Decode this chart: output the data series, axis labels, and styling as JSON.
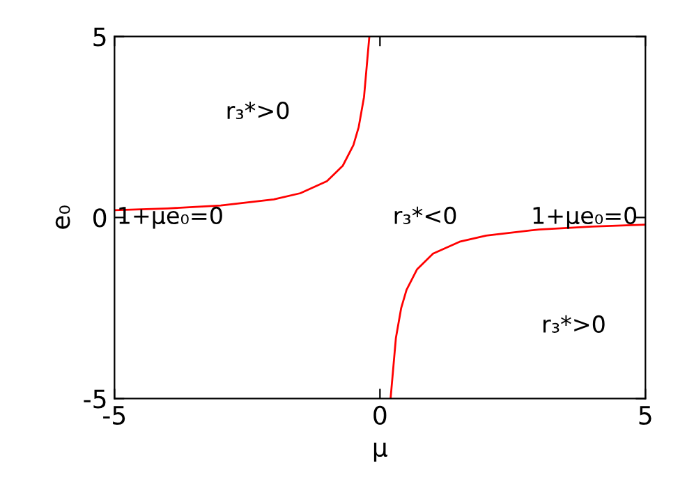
{
  "chart_data": {
    "type": "line",
    "xlabel": "μ",
    "ylabel": "e₀",
    "xlim": [
      -5,
      5
    ],
    "ylim": [
      -5,
      5
    ],
    "xticks": [
      -5,
      0,
      5
    ],
    "yticks": [
      -5,
      0,
      5
    ],
    "grid": false,
    "marker": "none",
    "line_style": "solid",
    "series": [
      {
        "color": "#ff0000",
        "x": [
          -5,
          -4,
          -3,
          -2,
          -1.5,
          -1,
          -0.7,
          -0.5,
          -0.4,
          -0.3,
          -0.2
        ],
        "values": [
          0.2,
          0.25,
          0.33,
          0.5,
          0.67,
          1,
          1.43,
          2,
          2.5,
          3.33,
          5
        ]
      },
      {
        "color": "#ff0000",
        "x": [
          0.2,
          0.3,
          0.4,
          0.5,
          0.7,
          1,
          1.5,
          2,
          3,
          4,
          5
        ],
        "values": [
          -5,
          -3.33,
          -2.5,
          -2,
          -1.43,
          -1,
          -0.67,
          -0.5,
          -0.33,
          -0.25,
          -0.2
        ]
      }
    ],
    "annotations": [
      "r₃*>0",
      "1+μe₀=0",
      "r₃*<0",
      "1+μe₀=0",
      "r₃*>0"
    ]
  }
}
